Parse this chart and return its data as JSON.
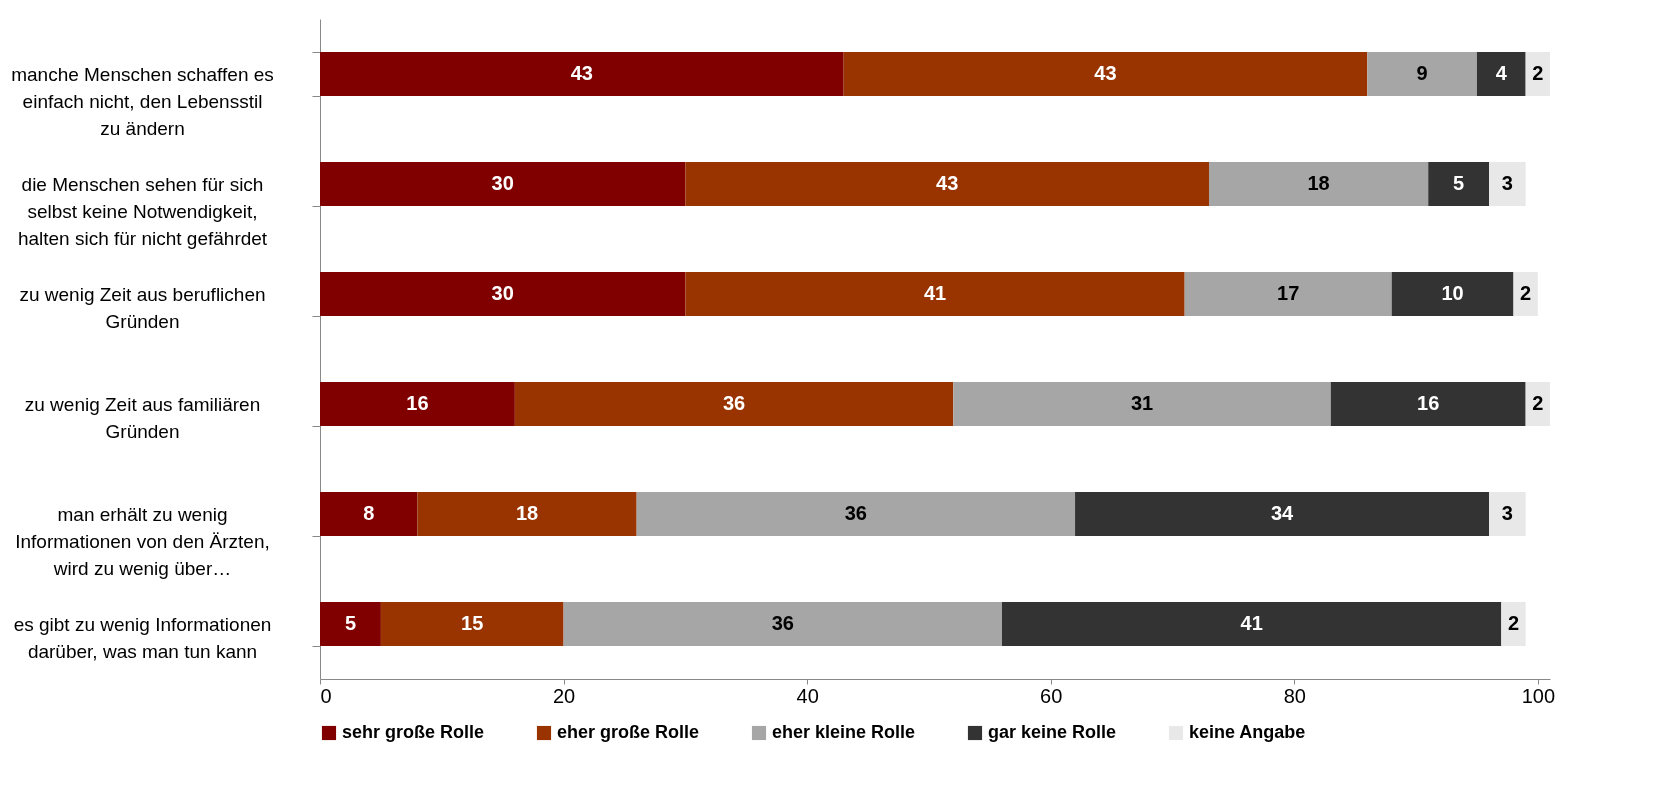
{
  "chart_data": {
    "type": "bar",
    "orientation": "horizontal",
    "stacked": true,
    "data_labels": true,
    "legend": "bottom",
    "grid": false,
    "categories": [
      "manche Menschen schaffen es einfach nicht, den Lebensstil zu ändern",
      "die Menschen sehen für sich selbst keine Notwendigkeit, halten sich für nicht gefährdet",
      "zu wenig Zeit aus beruflichen Gründen",
      "zu wenig Zeit aus familiären Gründen",
      "man erhält zu wenig Informationen von den Ärzten, wird zu wenig über…",
      "es gibt zu wenig Informationen darüber, was man tun kann"
    ],
    "series": [
      {
        "name": "sehr große Rolle",
        "color": "#800000",
        "values": [
          43,
          30,
          30,
          16,
          8,
          5
        ]
      },
      {
        "name": "eher große Rolle",
        "color": "#993300",
        "values": [
          43,
          43,
          41,
          36,
          18,
          15
        ]
      },
      {
        "name": "eher kleine Rolle",
        "color": "#a6a6a6",
        "values": [
          9,
          18,
          17,
          31,
          36,
          36
        ]
      },
      {
        "name": "gar keine Rolle",
        "color": "#333333",
        "values": [
          4,
          5,
          10,
          16,
          34,
          41
        ]
      },
      {
        "name": "keine Angabe",
        "color": "#e8e8e8",
        "values": [
          2,
          3,
          2,
          2,
          3,
          2
        ]
      }
    ],
    "xlim": [
      0,
      101
    ],
    "xticks": [
      0,
      20,
      40,
      60,
      80,
      100
    ]
  }
}
